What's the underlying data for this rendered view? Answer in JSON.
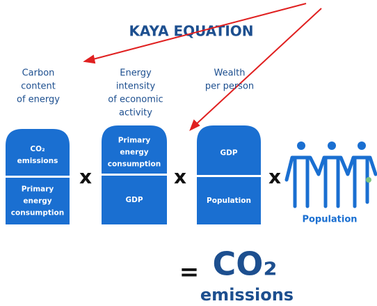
{
  "title": "KAYA EQUATION",
  "factors": [
    {
      "header": [
        "Carbon",
        "content",
        "of energy"
      ],
      "numerator": [
        "CO₂",
        "emissions"
      ],
      "denominator": [
        "Primary",
        "energy",
        "consumption"
      ]
    },
    {
      "header": [
        "Energy",
        "intensity",
        "of economic",
        "activity"
      ],
      "numerator": [
        "Primary",
        "energy",
        "consumption"
      ],
      "denominator": [
        "GDP"
      ]
    },
    {
      "header": [
        "Wealth",
        "per person"
      ],
      "numerator": [
        "GDP"
      ],
      "denominator": [
        "Population"
      ]
    }
  ],
  "operators": [
    "x",
    "x",
    "x"
  ],
  "population": "Population",
  "equals": "=",
  "result": {
    "formula": "CO₂",
    "label": "emissions"
  }
}
